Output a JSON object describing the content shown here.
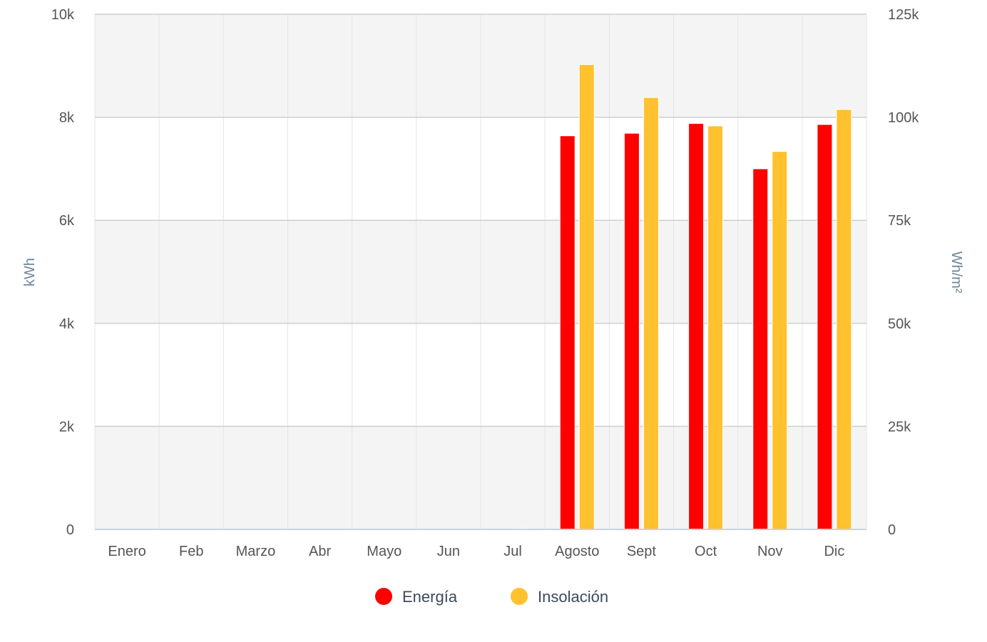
{
  "chart_data": {
    "type": "bar",
    "title": "",
    "categories": [
      "Enero",
      "Feb",
      "Marzo",
      "Abr",
      "Mayo",
      "Jun",
      "Jul",
      "Agosto",
      "Sept",
      "Oct",
      "Nov",
      "Dic"
    ],
    "series": [
      {
        "name": "Energía",
        "axis": "left",
        "color": "#ff0000",
        "values": [
          0,
          0,
          0,
          0,
          0,
          0,
          0,
          7640,
          7690,
          7880,
          7000,
          7860
        ]
      },
      {
        "name": "Insolación",
        "axis": "right",
        "color": "#ffc12e",
        "values": [
          0,
          0,
          0,
          0,
          0,
          0,
          200,
          112800,
          104800,
          97900,
          91700,
          101900
        ]
      }
    ],
    "yaxis_left": {
      "label": "kWh",
      "range": [
        0,
        10000
      ],
      "ticks": [
        {
          "value": 0,
          "label": "0"
        },
        {
          "value": 2000,
          "label": "2k"
        },
        {
          "value": 4000,
          "label": "4k"
        },
        {
          "value": 6000,
          "label": "6k"
        },
        {
          "value": 8000,
          "label": "8k"
        },
        {
          "value": 10000,
          "label": "10k"
        }
      ]
    },
    "yaxis_right": {
      "label": "Wh/m²",
      "range": [
        0,
        125000
      ],
      "ticks": [
        {
          "value": 0,
          "label": "0"
        },
        {
          "value": 25000,
          "label": "25k"
        },
        {
          "value": 50000,
          "label": "50k"
        },
        {
          "value": 75000,
          "label": "75k"
        },
        {
          "value": 100000,
          "label": "100k"
        },
        {
          "value": 125000,
          "label": "125k"
        }
      ]
    },
    "grid": true,
    "plot_band_color": "#f4f4f4",
    "legend_position": "bottom-center"
  }
}
